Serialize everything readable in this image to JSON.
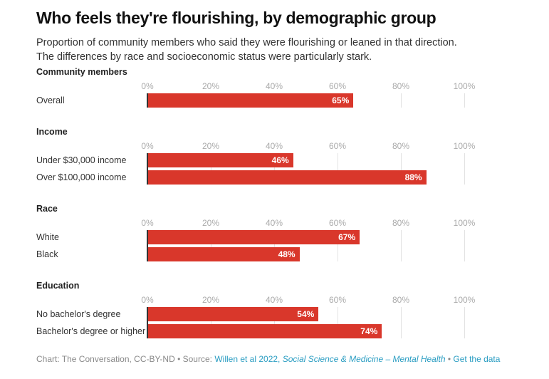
{
  "header": {
    "title": "Who feels they're flourishing, by demographic group",
    "subtitle_line1": "Proportion of community members who said they were flourishing or leaned in that direction.",
    "subtitle_line2": "The differences by race and socioeconomic status were particularly stark."
  },
  "footer": {
    "credit": "Chart: The Conversation, CC-BY-ND",
    "sep1": " • ",
    "source_label": "Source: ",
    "source_link": "Willen et al 2022, ",
    "source_journal": "Social Science & Medicine – Mental Health",
    "sep2": " • ",
    "data_link": "Get the data"
  },
  "colors": {
    "bar": "#d9372b",
    "link": "#2a9dc2"
  },
  "chart_data": {
    "type": "bar",
    "orientation": "horizontal",
    "title": "Who feels they're flourishing, by demographic group",
    "xlabel": "",
    "ylabel": "",
    "xlim": [
      0,
      100
    ],
    "ticks": [
      "0%",
      "20%",
      "40%",
      "60%",
      "80%",
      "100%"
    ],
    "tick_values": [
      0,
      20,
      40,
      60,
      80,
      100
    ],
    "grid": true,
    "value_suffix": "%",
    "groups": [
      {
        "name": "Community members",
        "categories": [
          "Overall"
        ],
        "values": [
          65
        ]
      },
      {
        "name": "Income",
        "categories": [
          "Under $30,000 income",
          "Over $100,000 income"
        ],
        "values": [
          46,
          88
        ]
      },
      {
        "name": "Race",
        "categories": [
          "White",
          "Black"
        ],
        "values": [
          67,
          48
        ]
      },
      {
        "name": "Education",
        "categories": [
          "No bachelor's degree",
          "Bachelor's degree or higher"
        ],
        "values": [
          54,
          74
        ]
      }
    ]
  }
}
